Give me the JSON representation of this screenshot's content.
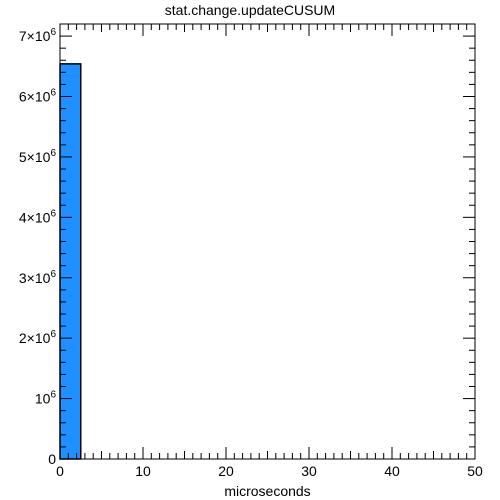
{
  "chart_data": {
    "type": "bar",
    "title": "stat.change.updateCUSUM",
    "xlabel": "microseconds",
    "ylabel": "",
    "bins": [
      {
        "x0": 0,
        "x1": 2.5,
        "count": 6540000
      }
    ],
    "xlim": [
      0,
      50
    ],
    "ylim": [
      0,
      7200000
    ],
    "x_ticks": [
      {
        "value": 0,
        "label": "0"
      },
      {
        "value": 10,
        "label": "10"
      },
      {
        "value": 20,
        "label": "20"
      },
      {
        "value": 30,
        "label": "30"
      },
      {
        "value": 40,
        "label": "40"
      },
      {
        "value": 50,
        "label": "50"
      }
    ],
    "y_ticks": [
      {
        "value": 0,
        "mant": "0",
        "exp": ""
      },
      {
        "value": 1000000,
        "mant": "10",
        "exp": "6"
      },
      {
        "value": 2000000,
        "mant": "2×10",
        "exp": "6"
      },
      {
        "value": 3000000,
        "mant": "3×10",
        "exp": "6"
      },
      {
        "value": 4000000,
        "mant": "4×10",
        "exp": "6"
      },
      {
        "value": 5000000,
        "mant": "5×10",
        "exp": "6"
      },
      {
        "value": 6000000,
        "mant": "6×10",
        "exp": "6"
      },
      {
        "value": 7000000,
        "mant": "7×10",
        "exp": "6"
      }
    ],
    "grid": false,
    "legend": "none",
    "bar_color": "#1e90ff"
  }
}
